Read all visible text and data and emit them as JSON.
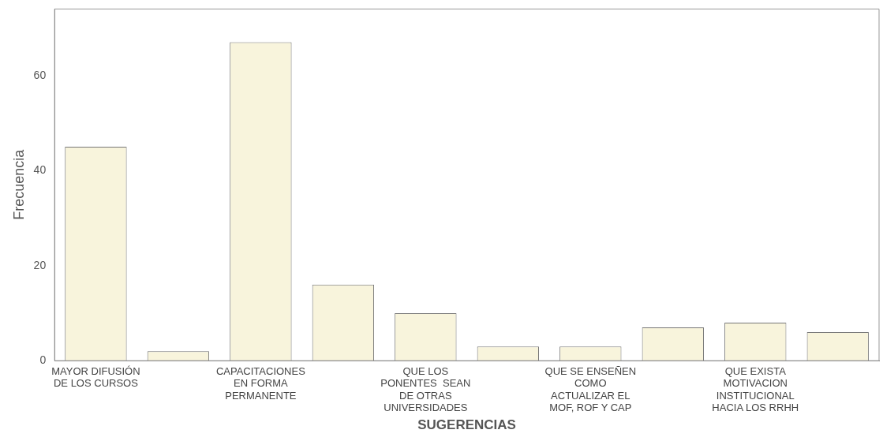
{
  "chart_data": {
    "type": "bar",
    "xlabel": "SUGERENCIAS",
    "ylabel": "Frecuencia",
    "categories": [
      "MAYOR DIFUSIÓN\nDE LOS CURSOS",
      null,
      "CAPACITACIONES\nEN FORMA\nPERMANENTE",
      null,
      "QUE LOS\nPONENTES  SEAN\nDE OTRAS\nUNIVERSIDADES",
      null,
      "QUE SE ENSEÑEN\nCOMO\nACTUALIZAR EL\nMOF, ROF Y CAP",
      null,
      "QUE EXISTA\nMOTIVACION\nINSTITUCIONAL\nHACIA LOS RRHH",
      null
    ],
    "values": [
      45,
      2,
      67,
      16,
      10,
      3,
      3,
      7,
      8,
      6
    ],
    "color": "#f8f4dc",
    "ylim": [
      0,
      74
    ],
    "yticks": [
      0,
      20,
      40,
      60
    ],
    "grid": false,
    "legend": false
  }
}
